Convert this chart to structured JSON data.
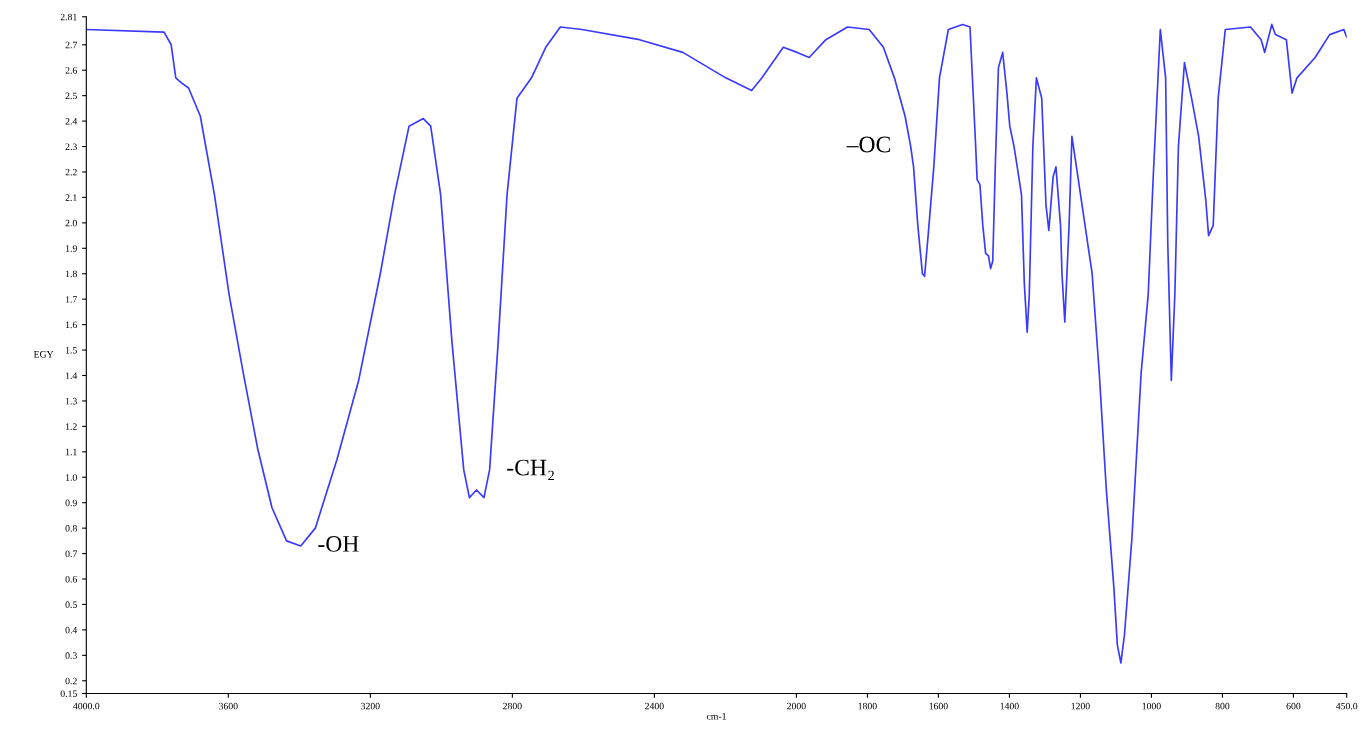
{
  "chart_data": {
    "type": "line",
    "xlabel": "cm-1",
    "ylabel": "EGY",
    "x": [
      4000,
      3781,
      3761,
      3748,
      3732,
      3712,
      3679,
      3639,
      3598,
      3558,
      3517,
      3477,
      3436,
      3396,
      3355,
      3294,
      3233,
      3172,
      3132,
      3091,
      3051,
      3030,
      3002,
      2970,
      2937,
      2921,
      2901,
      2880,
      2864,
      2840,
      2815,
      2787,
      2746,
      2706,
      2665,
      2604,
      2442,
      2320,
      2199,
      2126,
      2097,
      2037,
      1998,
      1964,
      1917,
      1856,
      1795,
      1755,
      1724,
      1694,
      1678,
      1670,
      1658,
      1645,
      1639,
      1629,
      1613,
      1597,
      1572,
      1532,
      1511,
      1507,
      1495,
      1491,
      1483,
      1475,
      1467,
      1459,
      1453,
      1447,
      1439,
      1431,
      1419,
      1407,
      1399,
      1387,
      1378,
      1366,
      1358,
      1350,
      1344,
      1334,
      1324,
      1309,
      1297,
      1289,
      1277,
      1269,
      1256,
      1252,
      1244,
      1232,
      1224,
      1207,
      1167,
      1147,
      1127,
      1106,
      1096,
      1086,
      1076,
      1055,
      1029,
      1009,
      995,
      975,
      960,
      954,
      944,
      934,
      924,
      907,
      887,
      867,
      847,
      839,
      826,
      812,
      792,
      721,
      691,
      681,
      661,
      651,
      620,
      604,
      590,
      539,
      498,
      458,
      450
    ],
    "series": [
      {
        "color": "#3a3aff",
        "values": [
          2.76,
          2.75,
          2.7,
          2.57,
          2.55,
          2.53,
          2.42,
          2.11,
          1.72,
          1.41,
          1.11,
          0.88,
          0.75,
          0.73,
          0.8,
          1.07,
          1.38,
          1.8,
          2.11,
          2.38,
          2.41,
          2.38,
          2.11,
          1.53,
          1.03,
          0.92,
          0.95,
          0.92,
          1.03,
          1.53,
          2.11,
          2.49,
          2.57,
          2.69,
          2.77,
          2.76,
          2.72,
          2.67,
          2.57,
          2.52,
          2.57,
          2.69,
          2.67,
          2.65,
          2.72,
          2.77,
          2.76,
          2.69,
          2.57,
          2.42,
          2.3,
          2.22,
          1.99,
          1.8,
          1.79,
          1.95,
          2.22,
          2.57,
          2.76,
          2.78,
          2.77,
          2.65,
          2.3,
          2.17,
          2.15,
          1.99,
          1.88,
          1.87,
          1.82,
          1.85,
          2.26,
          2.61,
          2.67,
          2.51,
          2.38,
          2.3,
          2.22,
          2.11,
          1.76,
          1.57,
          1.72,
          2.3,
          2.57,
          2.49,
          2.07,
          1.97,
          2.18,
          2.22,
          1.99,
          1.8,
          1.61,
          1.99,
          2.34,
          2.18,
          1.8,
          1.41,
          0.95,
          0.57,
          0.34,
          0.27,
          0.38,
          0.76,
          1.41,
          1.72,
          2.18,
          2.76,
          2.57,
          1.92,
          1.38,
          1.72,
          2.3,
          2.63,
          2.49,
          2.34,
          2.09,
          1.95,
          1.99,
          2.49,
          2.76,
          2.77,
          2.72,
          2.67,
          2.78,
          2.74,
          2.72,
          2.51,
          2.57,
          2.65,
          2.74,
          2.76,
          2.73
        ]
      }
    ],
    "xlim": [
      4000,
      450
    ],
    "xticks": [
      {
        "value": 4000,
        "label": "4000.0"
      },
      3600,
      3200,
      2800,
      2400,
      2000,
      1800,
      1600,
      1400,
      1200,
      1000,
      800,
      600,
      {
        "value": 450,
        "label": "450.0"
      }
    ],
    "ylim": [
      0.15,
      2.81
    ],
    "yticks": [
      0.15,
      0.2,
      0.3,
      0.4,
      0.5,
      0.6,
      0.7,
      0.8,
      0.9,
      {
        "value": 1,
        "label": "1.0"
      },
      1.1,
      1.2,
      1.3,
      1.4,
      1.5,
      1.6,
      1.7,
      1.8,
      1.9,
      {
        "value": 2,
        "label": "2.0"
      },
      2.1,
      2.2,
      2.3,
      2.4,
      2.5,
      2.6,
      2.7,
      2.81
    ],
    "grid": false,
    "legend": false,
    "marker": "none",
    "line_style": "solid",
    "annotations": [
      {
        "text": "-OH",
        "x": 3396,
        "y": 0.73
      },
      {
        "text": "-CH₂",
        "x": 2864,
        "y": 1.03
      },
      {
        "text": "–OC",
        "x": 1678,
        "y": 2.3
      }
    ]
  }
}
